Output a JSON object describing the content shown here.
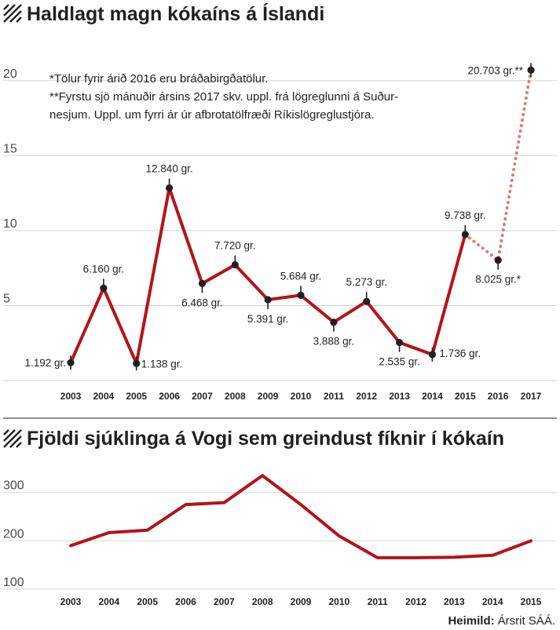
{
  "chart_data": [
    {
      "type": "line",
      "title": "Haldlagt magn kókaíns á Íslandi",
      "notes": [
        "*Tölur fyrir árið 2016 eru bráðabirgðatölur.",
        "**Fyrstu sjö mánuðir ársins 2017 skv. uppl. frá lögreglunni á Suður-",
        "nesjum. Uppl. um fyrri ár úr afbrotatölfræði Ríkislögreglustjóra."
      ],
      "x": [
        "2003",
        "2004",
        "2005",
        "2006",
        "2007",
        "2008",
        "2009",
        "2010",
        "2011",
        "2012",
        "2013",
        "2014",
        "2015",
        "2016",
        "2017"
      ],
      "series": [
        {
          "values": [
            1.192,
            6.16,
            1.138,
            12.84,
            6.468,
            7.72,
            5.391,
            5.684,
            3.888,
            5.273,
            2.535,
            1.736,
            9.738,
            8.025,
            20.703
          ]
        }
      ],
      "data_labels": [
        "1.192 gr.",
        "6.160 gr.",
        "1.138 gr.",
        "12.840 gr.",
        "6.468 gr.",
        "7.720 gr.",
        "5.391 gr.",
        "5.684 gr.",
        "3.888 gr.",
        "5.273 gr.",
        "2.535 gr.",
        "1.736 gr.",
        "9.738 gr.",
        "8.025 gr.*",
        "20.703 gr.**"
      ],
      "dotted_from_index": 12,
      "yticks": [
        5,
        10,
        15,
        20
      ],
      "ylim": [
        0,
        22.5
      ],
      "line_color": "#b5121b",
      "dotted_color": "#e07a6a",
      "grid": true
    },
    {
      "type": "line",
      "title": "Fjöldi sjúklinga á Vogi sem greindust fíknir í kókaín",
      "x": [
        "2003",
        "2004",
        "2005",
        "2006",
        "2007",
        "2008",
        "2009",
        "2010",
        "2011",
        "2012",
        "2013",
        "2014",
        "2015"
      ],
      "series": [
        {
          "values": [
            190,
            217,
            222,
            275,
            279,
            335,
            275,
            210,
            165,
            165,
            166,
            170,
            200
          ]
        }
      ],
      "yticks": [
        100,
        200,
        300
      ],
      "ylim": [
        95,
        345
      ],
      "line_color": "#b5121b",
      "grid": true
    }
  ],
  "source": {
    "label": "Heimild:",
    "text": "Ársrit SÁÁ."
  }
}
